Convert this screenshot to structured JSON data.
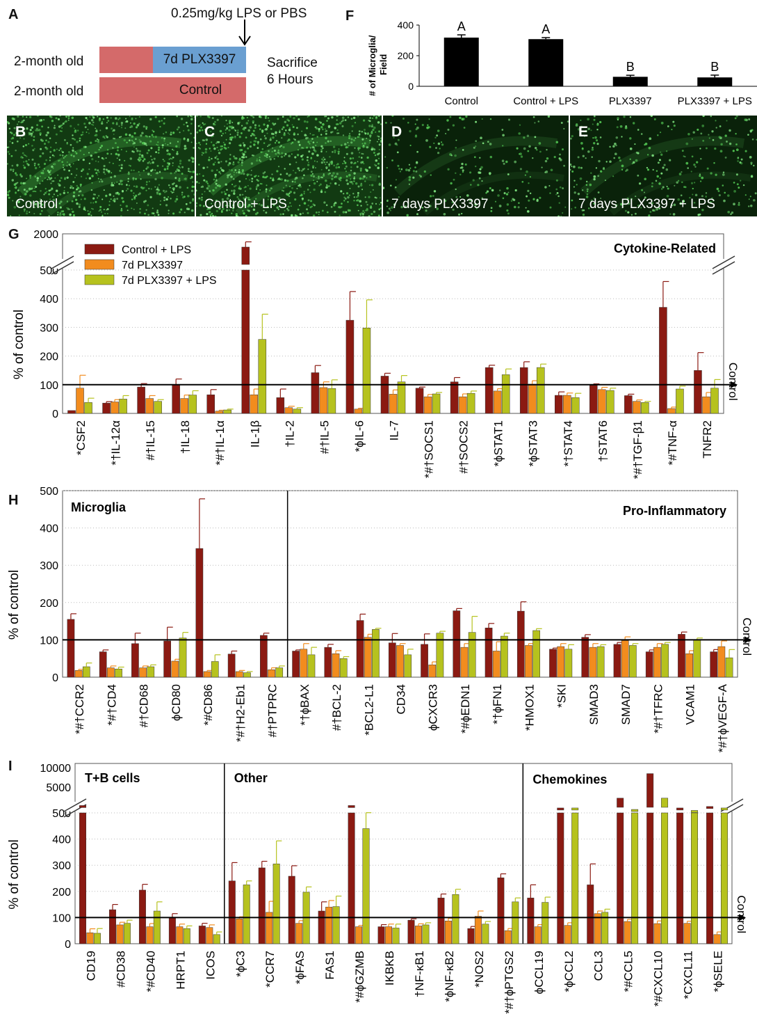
{
  "panel_letters": {
    "A": "A",
    "B": "B",
    "C": "C",
    "D": "D",
    "E": "E",
    "F": "F",
    "G": "G",
    "H": "H",
    "I": "I"
  },
  "panelA": {
    "dose_label": "0.25mg/kg LPS or PBS",
    "rows": [
      {
        "label": "2-month old",
        "segments": [
          "",
          "7d PLX3397"
        ]
      },
      {
        "label": "2-month old",
        "segments": [
          "Control"
        ]
      }
    ],
    "sacrifice_line1": "Sacrifice",
    "sacrifice_line2": "6 Hours",
    "colors": {
      "control": "#d46a6a",
      "plx": "#6a9fd1"
    }
  },
  "images": [
    {
      "letter": "B",
      "caption": "Control"
    },
    {
      "letter": "C",
      "caption": "Control + LPS"
    },
    {
      "letter": "D",
      "caption": "7 days PLX3397"
    },
    {
      "letter": "E",
      "caption": "7 days PLX3397 + LPS"
    }
  ],
  "colors": {
    "series1": "#8b1a12",
    "series2": "#f28c1e",
    "series3": "#b6c21e",
    "bar_black": "#000000"
  },
  "chart_data": [
    {
      "id": "F",
      "type": "bar",
      "ylabel": "# of Microglia/ Field",
      "ylim": [
        0,
        400
      ],
      "yticks": [
        "0",
        "200",
        "400"
      ],
      "categories": [
        "Control",
        "Control + LPS",
        "PLX3397",
        "PLX3397 + LPS"
      ],
      "values": [
        318,
        308,
        62,
        58
      ],
      "errors": [
        18,
        10,
        10,
        15
      ],
      "letters": [
        "A",
        "A",
        "B",
        "B"
      ]
    },
    {
      "id": "G",
      "type": "bar",
      "section_titles": [
        "Cytokine-Related"
      ],
      "ylabel": "% of control",
      "ylim": [
        0,
        500
      ],
      "ylim_broken_top": 2000,
      "yticks": [
        "0",
        "100",
        "200",
        "300",
        "400",
        "500"
      ],
      "top_tick": "2000",
      "reference_line": 100,
      "reference_label": "Control",
      "series_names": [
        "Control  + LPS",
        "7d PLX3397",
        "7d PLX3397 + LPS"
      ],
      "categories": [
        "*CSF2",
        "*†IL-12α",
        "#†IL-15",
        "†IL-18",
        "*#†IL-1α",
        "IL-1β",
        "†IL-2",
        "#†IL-5",
        "*ϕIL-6",
        "IL-7",
        "*#†SOCS1",
        "#†SOCS2",
        "*ϕSTAT1",
        "*ϕSTAT3",
        "*†STAT4",
        "†STAT6",
        "*#†TGF-β1",
        "*#TNF-α",
        "TNFR2"
      ],
      "values": [
        [
          10,
          36,
          92,
          100,
          65,
          1600,
          55,
          142,
          325,
          130,
          88,
          110,
          160,
          160,
          63,
          98,
          62,
          370,
          150
        ],
        [
          88,
          40,
          52,
          52,
          8,
          65,
          20,
          90,
          15,
          67,
          58,
          58,
          78,
          102,
          63,
          83,
          42,
          17,
          58
        ],
        [
          38,
          50,
          42,
          64,
          12,
          258,
          15,
          87,
          298,
          110,
          68,
          70,
          135,
          160,
          55,
          80,
          38,
          85,
          88
        ]
      ],
      "errors": [
        [
          0,
          5,
          12,
          20,
          18,
          250,
          30,
          25,
          100,
          10,
          4,
          15,
          8,
          20,
          12,
          5,
          5,
          90,
          62
        ],
        [
          45,
          8,
          10,
          12,
          3,
          20,
          5,
          20,
          3,
          15,
          8,
          10,
          8,
          12,
          8,
          8,
          5,
          5,
          15
        ],
        [
          15,
          12,
          6,
          15,
          3,
          88,
          5,
          30,
          98,
          22,
          5,
          8,
          20,
          12,
          15,
          8,
          4,
          10,
          30
        ]
      ]
    },
    {
      "id": "H",
      "type": "bar",
      "section_titles": [
        "Microglia",
        "Pro-Inflammatory"
      ],
      "ylabel": "% of control",
      "ylim": [
        0,
        500
      ],
      "yticks": [
        "0",
        "100",
        "200",
        "300",
        "400",
        "500"
      ],
      "reference_line": 100,
      "reference_label": "Control",
      "categories": [
        "*#†CCR2",
        "*#†CD4",
        "#†CD68",
        "ϕCD80",
        "*#CD86",
        "*#†H2-Eb1",
        "#†PTPRC",
        "*†ϕBAX",
        "#†BCL-2",
        "*BCL2-L1",
        "CD34",
        "ϕCXCR3",
        "*#ϕEDN1",
        "*†ϕFN1",
        "*HMOX1",
        "*SKI",
        "SMAD3",
        "SMAD7",
        "*#†TFRC",
        "VCAM1",
        "*#†ϕVEGF-A"
      ],
      "values": [
        [
          155,
          68,
          90,
          97,
          345,
          62,
          112,
          70,
          80,
          152,
          92,
          88,
          178,
          132,
          177,
          75,
          107,
          88,
          68,
          115,
          68
        ],
        [
          18,
          25,
          25,
          43,
          15,
          15,
          20,
          75,
          63,
          107,
          85,
          33,
          80,
          70,
          85,
          82,
          80,
          98,
          80,
          63,
          82
        ],
        [
          28,
          22,
          28,
          105,
          42,
          12,
          25,
          60,
          50,
          128,
          60,
          118,
          120,
          110,
          125,
          75,
          82,
          85,
          88,
          100,
          52
        ]
      ],
      "errors": [
        [
          15,
          5,
          28,
          37,
          133,
          8,
          6,
          3,
          8,
          17,
          25,
          28,
          6,
          12,
          25,
          3,
          7,
          5,
          5,
          6,
          6
        ],
        [
          3,
          5,
          5,
          5,
          3,
          3,
          5,
          15,
          8,
          8,
          5,
          8,
          10,
          25,
          5,
          8,
          10,
          10,
          10,
          8,
          15
        ],
        [
          10,
          5,
          5,
          15,
          18,
          3,
          5,
          20,
          5,
          3,
          15,
          5,
          43,
          8,
          5,
          12,
          5,
          5,
          5,
          5,
          22
        ]
      ]
    },
    {
      "id": "I",
      "type": "bar",
      "section_titles": [
        "T+B cells",
        "Other",
        "Chemokines"
      ],
      "ylabel": "% of control",
      "ylim": [
        0,
        500
      ],
      "ylim_broken_top": 10000,
      "yticks": [
        "0",
        "100",
        "200",
        "300",
        "400",
        "500"
      ],
      "upper_ticks": [
        "5000",
        "10000"
      ],
      "reference_line": 100,
      "reference_label": "Control",
      "categories": [
        "CD19",
        "#CD38",
        "*#CD40",
        "HRPT1",
        "ICOS",
        "*ϕC3",
        "*CCR7",
        "*ϕFAS",
        "FAS1",
        "*#ϕGZMB",
        "IKBKB",
        "†NF-κB1",
        "*ϕNF-κB2",
        "*NOS2",
        "*#†ϕPTGS2",
        "ϕCCL19",
        "*ϕCCL2",
        "CCL3",
        "*#CCL5",
        "*#CXCL10",
        "*CXCL11",
        "*ϕSELE"
      ],
      "values": [
        [
          2000,
          130,
          205,
          100,
          68,
          240,
          290,
          258,
          125,
          2000,
          65,
          90,
          175,
          58,
          252,
          175,
          1500,
          225,
          3500,
          8500,
          1500,
          1800
        ],
        [
          42,
          72,
          65,
          65,
          62,
          95,
          120,
          78,
          140,
          65,
          65,
          68,
          87,
          105,
          50,
          65,
          70,
          115,
          85,
          77,
          78,
          35
        ],
        [
          40,
          78,
          125,
          58,
          35,
          225,
          305,
          197,
          142,
          440,
          60,
          72,
          188,
          75,
          160,
          158,
          1500,
          120,
          1200,
          3500,
          1000,
          1500
        ]
      ],
      "errors": [
        [
          0,
          20,
          22,
          15,
          10,
          70,
          25,
          40,
          35,
          0,
          8,
          5,
          15,
          8,
          15,
          50,
          0,
          80,
          0,
          0,
          0,
          0
        ],
        [
          15,
          10,
          12,
          10,
          10,
          8,
          42,
          10,
          25,
          5,
          10,
          8,
          10,
          20,
          8,
          8,
          10,
          10,
          8,
          10,
          8,
          10
        ],
        [
          18,
          12,
          35,
          10,
          10,
          15,
          88,
          20,
          40,
          100,
          15,
          8,
          20,
          10,
          15,
          20,
          0,
          12,
          0,
          0,
          0,
          0
        ]
      ]
    }
  ]
}
